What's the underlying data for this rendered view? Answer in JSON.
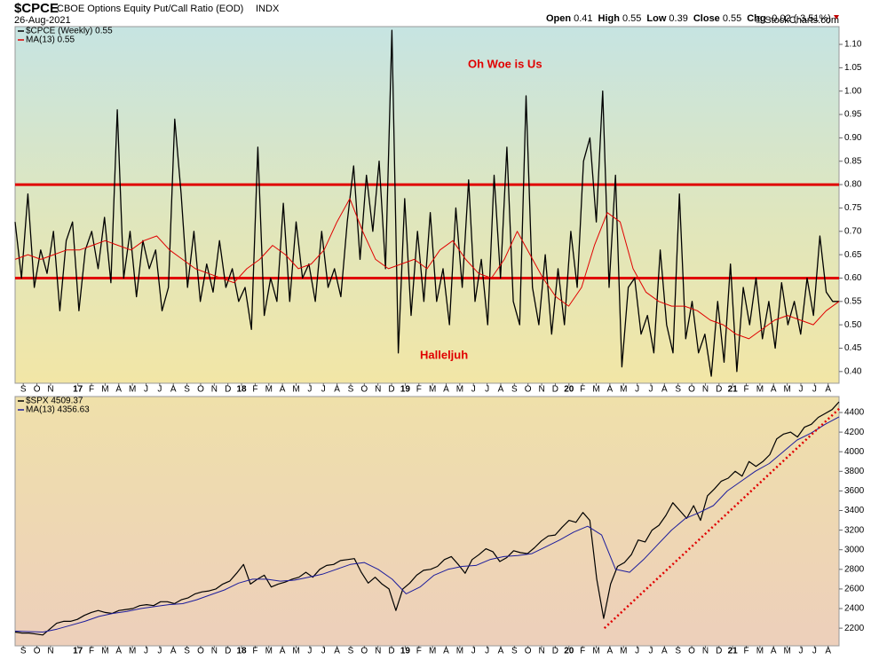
{
  "header": {
    "symbol": "$CPCE",
    "name": "CBOE Options Equity Put/Call Ratio (EOD)",
    "exchange": "INDX",
    "date": "26-Aug-2021",
    "credit": "© StockCharts.com",
    "quote": [
      {
        "label": "Open",
        "value": "0.41"
      },
      {
        "label": "High",
        "value": "0.55"
      },
      {
        "label": "Low",
        "value": "0.39"
      },
      {
        "label": "Close",
        "value": "0.55"
      },
      {
        "label": "Chg",
        "value": "-0.02 (-3.51%)"
      }
    ]
  },
  "chart_data": [
    {
      "type": "line",
      "annotations": [
        "Oh Woe is Us",
        "Halleljuh"
      ],
      "xlim": [
        -0.6,
        59.8
      ],
      "xticks": [
        {
          "value": 0,
          "label": "S"
        },
        {
          "value": 1,
          "label": "O"
        },
        {
          "value": 2,
          "label": "N"
        },
        {
          "value": 4,
          "label": "17"
        },
        {
          "value": 5,
          "label": "F"
        },
        {
          "value": 6,
          "label": "M"
        },
        {
          "value": 7,
          "label": "A"
        },
        {
          "value": 8,
          "label": "M"
        },
        {
          "value": 9,
          "label": "J"
        },
        {
          "value": 10,
          "label": "J"
        },
        {
          "value": 11,
          "label": "A"
        },
        {
          "value": 12,
          "label": "S"
        },
        {
          "value": 13,
          "label": "O"
        },
        {
          "value": 14,
          "label": "N"
        },
        {
          "value": 15,
          "label": "D"
        },
        {
          "value": 16,
          "label": "18"
        },
        {
          "value": 17,
          "label": "F"
        },
        {
          "value": 18,
          "label": "M"
        },
        {
          "value": 19,
          "label": "A"
        },
        {
          "value": 20,
          "label": "M"
        },
        {
          "value": 21,
          "label": "J"
        },
        {
          "value": 22,
          "label": "J"
        },
        {
          "value": 23,
          "label": "A"
        },
        {
          "value": 24,
          "label": "S"
        },
        {
          "value": 25,
          "label": "O"
        },
        {
          "value": 26,
          "label": "N"
        },
        {
          "value": 27,
          "label": "D"
        },
        {
          "value": 28,
          "label": "19"
        },
        {
          "value": 29,
          "label": "F"
        },
        {
          "value": 30,
          "label": "M"
        },
        {
          "value": 31,
          "label": "A"
        },
        {
          "value": 32,
          "label": "M"
        },
        {
          "value": 33,
          "label": "J"
        },
        {
          "value": 34,
          "label": "J"
        },
        {
          "value": 35,
          "label": "A"
        },
        {
          "value": 36,
          "label": "S"
        },
        {
          "value": 37,
          "label": "O"
        },
        {
          "value": 38,
          "label": "N"
        },
        {
          "value": 39,
          "label": "D"
        },
        {
          "value": 40,
          "label": "20"
        },
        {
          "value": 41,
          "label": "F"
        },
        {
          "value": 42,
          "label": "M"
        },
        {
          "value": 43,
          "label": "A"
        },
        {
          "value": 44,
          "label": "M"
        },
        {
          "value": 45,
          "label": "J"
        },
        {
          "value": 46,
          "label": "J"
        },
        {
          "value": 47,
          "label": "A"
        },
        {
          "value": 48,
          "label": "S"
        },
        {
          "value": 49,
          "label": "O"
        },
        {
          "value": 50,
          "label": "N"
        },
        {
          "value": 51,
          "label": "D"
        },
        {
          "value": 52,
          "label": "21"
        },
        {
          "value": 53,
          "label": "F"
        },
        {
          "value": 54,
          "label": "M"
        },
        {
          "value": 55,
          "label": "A"
        },
        {
          "value": 56,
          "label": "M"
        },
        {
          "value": 57,
          "label": "J"
        },
        {
          "value": 58,
          "label": "J"
        },
        {
          "value": 59,
          "label": "A"
        }
      ],
      "ylim": [
        0.375,
        1.138
      ],
      "yticks": [
        {
          "value": 0.4,
          "label": "0.40"
        },
        {
          "value": 0.45,
          "label": "0.45"
        },
        {
          "value": 0.5,
          "label": "0.50"
        },
        {
          "value": 0.55,
          "label": "0.55"
        },
        {
          "value": 0.6,
          "label": "0.60"
        },
        {
          "value": 0.65,
          "label": "0.65"
        },
        {
          "value": 0.7,
          "label": "0.70"
        },
        {
          "value": 0.75,
          "label": "0.75"
        },
        {
          "value": 0.8,
          "label": "0.80"
        },
        {
          "value": 0.85,
          "label": "0.85"
        },
        {
          "value": 0.9,
          "label": "0.90"
        },
        {
          "value": 0.95,
          "label": "0.95"
        },
        {
          "value": 1.0,
          "label": "1.00"
        },
        {
          "value": 1.05,
          "label": "1.05"
        },
        {
          "value": 1.1,
          "label": "1.10"
        }
      ],
      "hlines": [
        {
          "value": 0.8,
          "color": "#e00000"
        },
        {
          "value": 0.6,
          "color": "#e00000"
        }
      ],
      "series": [
        {
          "name": "$CPCE (Weekly) 0.55",
          "color": "#000000",
          "width": 1.3,
          "values": [
            0.72,
            0.6,
            0.78,
            0.58,
            0.66,
            0.61,
            0.7,
            0.53,
            0.68,
            0.72,
            0.53,
            0.66,
            0.7,
            0.62,
            0.73,
            0.59,
            0.96,
            0.6,
            0.7,
            0.56,
            0.68,
            0.62,
            0.66,
            0.53,
            0.58,
            0.94,
            0.78,
            0.58,
            0.7,
            0.55,
            0.63,
            0.57,
            0.68,
            0.58,
            0.62,
            0.55,
            0.58,
            0.49,
            0.88,
            0.52,
            0.6,
            0.55,
            0.76,
            0.55,
            0.72,
            0.6,
            0.63,
            0.55,
            0.7,
            0.58,
            0.62,
            0.56,
            0.72,
            0.84,
            0.64,
            0.82,
            0.7,
            0.85,
            0.62,
            1.13,
            0.44,
            0.77,
            0.52,
            0.7,
            0.55,
            0.74,
            0.55,
            0.62,
            0.5,
            0.75,
            0.58,
            0.81,
            0.55,
            0.64,
            0.5,
            0.82,
            0.6,
            0.88,
            0.55,
            0.5,
            0.99,
            0.58,
            0.5,
            0.65,
            0.48,
            0.62,
            0.5,
            0.7,
            0.58,
            0.85,
            0.9,
            0.72,
            1.0,
            0.58,
            0.82,
            0.41,
            0.58,
            0.6,
            0.48,
            0.52,
            0.44,
            0.66,
            0.5,
            0.44,
            0.78,
            0.47,
            0.55,
            0.44,
            0.48,
            0.39,
            0.55,
            0.42,
            0.63,
            0.4,
            0.58,
            0.5,
            0.6,
            0.47,
            0.55,
            0.45,
            0.59,
            0.5,
            0.55,
            0.48,
            0.6,
            0.52,
            0.69,
            0.57,
            0.55,
            0.55
          ]
        },
        {
          "name": "MA(13) 0.55",
          "color": "#e00000",
          "width": 1,
          "values": [
            0.64,
            0.65,
            0.64,
            0.65,
            0.66,
            0.66,
            0.67,
            0.68,
            0.67,
            0.66,
            0.68,
            0.69,
            0.66,
            0.64,
            0.62,
            0.61,
            0.6,
            0.59,
            0.62,
            0.64,
            0.67,
            0.65,
            0.62,
            0.63,
            0.66,
            0.72,
            0.77,
            0.7,
            0.64,
            0.62,
            0.63,
            0.64,
            0.62,
            0.66,
            0.68,
            0.64,
            0.61,
            0.6,
            0.64,
            0.7,
            0.65,
            0.6,
            0.56,
            0.54,
            0.58,
            0.67,
            0.74,
            0.72,
            0.62,
            0.57,
            0.55,
            0.54,
            0.54,
            0.53,
            0.51,
            0.5,
            0.48,
            0.47,
            0.49,
            0.51,
            0.52,
            0.51,
            0.5,
            0.53,
            0.55
          ]
        }
      ]
    },
    {
      "type": "line",
      "xlim": [
        -0.6,
        59.8
      ],
      "xticks": [
        {
          "value": 0,
          "label": "S"
        },
        {
          "value": 1,
          "label": "O"
        },
        {
          "value": 2,
          "label": "N"
        },
        {
          "value": 4,
          "label": "17"
        },
        {
          "value": 5,
          "label": "F"
        },
        {
          "value": 6,
          "label": "M"
        },
        {
          "value": 7,
          "label": "A"
        },
        {
          "value": 8,
          "label": "M"
        },
        {
          "value": 9,
          "label": "J"
        },
        {
          "value": 10,
          "label": "J"
        },
        {
          "value": 11,
          "label": "A"
        },
        {
          "value": 12,
          "label": "S"
        },
        {
          "value": 13,
          "label": "O"
        },
        {
          "value": 14,
          "label": "N"
        },
        {
          "value": 15,
          "label": "D"
        },
        {
          "value": 16,
          "label": "18"
        },
        {
          "value": 17,
          "label": "F"
        },
        {
          "value": 18,
          "label": "M"
        },
        {
          "value": 19,
          "label": "A"
        },
        {
          "value": 20,
          "label": "M"
        },
        {
          "value": 21,
          "label": "J"
        },
        {
          "value": 22,
          "label": "J"
        },
        {
          "value": 23,
          "label": "A"
        },
        {
          "value": 24,
          "label": "S"
        },
        {
          "value": 25,
          "label": "O"
        },
        {
          "value": 26,
          "label": "N"
        },
        {
          "value": 27,
          "label": "D"
        },
        {
          "value": 28,
          "label": "19"
        },
        {
          "value": 29,
          "label": "F"
        },
        {
          "value": 30,
          "label": "M"
        },
        {
          "value": 31,
          "label": "A"
        },
        {
          "value": 32,
          "label": "M"
        },
        {
          "value": 33,
          "label": "J"
        },
        {
          "value": 34,
          "label": "J"
        },
        {
          "value": 35,
          "label": "A"
        },
        {
          "value": 36,
          "label": "S"
        },
        {
          "value": 37,
          "label": "O"
        },
        {
          "value": 38,
          "label": "N"
        },
        {
          "value": 39,
          "label": "D"
        },
        {
          "value": 40,
          "label": "20"
        },
        {
          "value": 41,
          "label": "F"
        },
        {
          "value": 42,
          "label": "M"
        },
        {
          "value": 43,
          "label": "A"
        },
        {
          "value": 44,
          "label": "M"
        },
        {
          "value": 45,
          "label": "J"
        },
        {
          "value": 46,
          "label": "J"
        },
        {
          "value": 47,
          "label": "A"
        },
        {
          "value": 48,
          "label": "S"
        },
        {
          "value": 49,
          "label": "O"
        },
        {
          "value": 50,
          "label": "N"
        },
        {
          "value": 51,
          "label": "D"
        },
        {
          "value": 52,
          "label": "21"
        },
        {
          "value": 53,
          "label": "F"
        },
        {
          "value": 54,
          "label": "M"
        },
        {
          "value": 55,
          "label": "A"
        },
        {
          "value": 56,
          "label": "M"
        },
        {
          "value": 57,
          "label": "J"
        },
        {
          "value": 58,
          "label": "J"
        },
        {
          "value": 59,
          "label": "A"
        }
      ],
      "ylim": [
        2020,
        4563
      ],
      "yticks": [
        2200,
        2400,
        2600,
        2800,
        3000,
        3200,
        3400,
        3600,
        3800,
        4000,
        4200,
        4400
      ],
      "series": [
        {
          "name": "$SPX 4509.37",
          "color": "#000000",
          "width": 1.2,
          "values": [
            2160,
            2150,
            2150,
            2140,
            2130,
            2190,
            2250,
            2270,
            2270,
            2290,
            2330,
            2360,
            2380,
            2360,
            2350,
            2380,
            2390,
            2400,
            2430,
            2440,
            2430,
            2470,
            2470,
            2450,
            2490,
            2510,
            2550,
            2570,
            2580,
            2600,
            2650,
            2680,
            2760,
            2850,
            2650,
            2700,
            2740,
            2620,
            2650,
            2670,
            2700,
            2720,
            2770,
            2720,
            2800,
            2840,
            2850,
            2890,
            2900,
            2910,
            2770,
            2660,
            2720,
            2650,
            2600,
            2380,
            2600,
            2660,
            2740,
            2790,
            2800,
            2830,
            2900,
            2930,
            2850,
            2760,
            2900,
            2950,
            3010,
            2980,
            2880,
            2920,
            2990,
            2970,
            2960,
            3020,
            3090,
            3140,
            3150,
            3230,
            3300,
            3280,
            3380,
            3300,
            2700,
            2300,
            2650,
            2830,
            2870,
            2950,
            3100,
            3080,
            3200,
            3250,
            3350,
            3480,
            3400,
            3320,
            3450,
            3300,
            3550,
            3620,
            3700,
            3730,
            3800,
            3750,
            3900,
            3850,
            3900,
            3970,
            4130,
            4180,
            4200,
            4150,
            4250,
            4280,
            4350,
            4390,
            4430,
            4509
          ]
        },
        {
          "name": "MA(13) 4356.63",
          "color": "#1c1c9c",
          "width": 1,
          "values": [
            2170,
            2165,
            2160,
            2190,
            2230,
            2270,
            2320,
            2350,
            2370,
            2400,
            2420,
            2440,
            2450,
            2490,
            2540,
            2590,
            2660,
            2700,
            2700,
            2680,
            2690,
            2720,
            2750,
            2800,
            2850,
            2870,
            2800,
            2700,
            2550,
            2620,
            2740,
            2800,
            2830,
            2840,
            2900,
            2930,
            2940,
            2960,
            3030,
            3100,
            3180,
            3240,
            3150,
            2800,
            2770,
            2900,
            3050,
            3200,
            3320,
            3380,
            3450,
            3600,
            3700,
            3800,
            3880,
            4000,
            4120,
            4190,
            4280,
            4356
          ]
        }
      ],
      "trend_line": {
        "color": "#e00000",
        "x": [
          42.6,
          59.9
        ],
        "values": [
          2200,
          4450
        ]
      }
    }
  ]
}
